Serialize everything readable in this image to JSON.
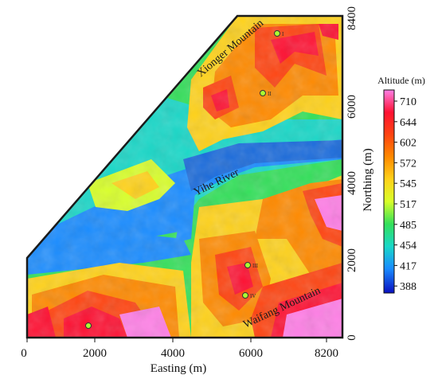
{
  "map": {
    "x_axis": {
      "title": "Easting (m)",
      "ticks": [
        "0",
        "2000",
        "4000",
        "6000",
        "8200"
      ]
    },
    "y_axis": {
      "title": "Northing (m)",
      "ticks": [
        "0",
        "2000",
        "4000",
        "6000",
        "8400"
      ]
    },
    "legend": {
      "title": "Altitude (m)",
      "values": [
        "710",
        "644",
        "602",
        "572",
        "545",
        "517",
        "485",
        "454",
        "417",
        "388"
      ],
      "colors": [
        "#ff7fe6",
        "#ff1133",
        "#ff4411",
        "#ff8a00",
        "#ffd21a",
        "#d8ff2a",
        "#33e05a",
        "#19d8c8",
        "#1a8cff",
        "#0a10c0"
      ]
    },
    "labels": {
      "north_mountain": "Xionger Mountain",
      "south_mountain": "Waifang Mountain",
      "river": "Yihe River"
    },
    "points": [
      {
        "id": "I"
      },
      {
        "id": "II"
      },
      {
        "id": "III"
      },
      {
        "id": "IV"
      },
      {
        "id": ""
      }
    ]
  }
}
